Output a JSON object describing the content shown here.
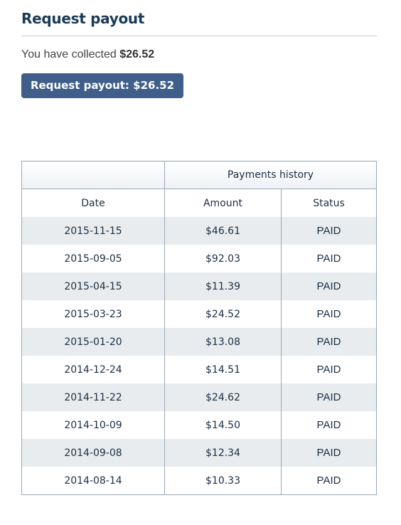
{
  "header": {
    "title": "Request payout"
  },
  "collected": {
    "prefix": "You have collected",
    "amount": "$26.52"
  },
  "payout_button": {
    "label": "Request payout: $26.52"
  },
  "history": {
    "group_header": "Payments history",
    "columns": [
      "Date",
      "Amount",
      "Status"
    ],
    "rows": [
      {
        "date": "2015-11-15",
        "amount": "$46.61",
        "status": "PAID"
      },
      {
        "date": "2015-09-05",
        "amount": "$92.03",
        "status": "PAID"
      },
      {
        "date": "2015-04-15",
        "amount": "$11.39",
        "status": "PAID"
      },
      {
        "date": "2015-03-23",
        "amount": "$24.52",
        "status": "PAID"
      },
      {
        "date": "2015-01-20",
        "amount": "$13.08",
        "status": "PAID"
      },
      {
        "date": "2014-12-24",
        "amount": "$14.51",
        "status": "PAID"
      },
      {
        "date": "2014-11-22",
        "amount": "$24.62",
        "status": "PAID"
      },
      {
        "date": "2014-10-09",
        "amount": "$14.50",
        "status": "PAID"
      },
      {
        "date": "2014-09-08",
        "amount": "$12.34",
        "status": "PAID"
      },
      {
        "date": "2014-08-14",
        "amount": "$10.33",
        "status": "PAID"
      }
    ]
  },
  "colors": {
    "title": "#1b3a55",
    "button": "#3f5f8a",
    "row_stripe": "#e8ecee",
    "table_border": "#9aa8b5"
  }
}
